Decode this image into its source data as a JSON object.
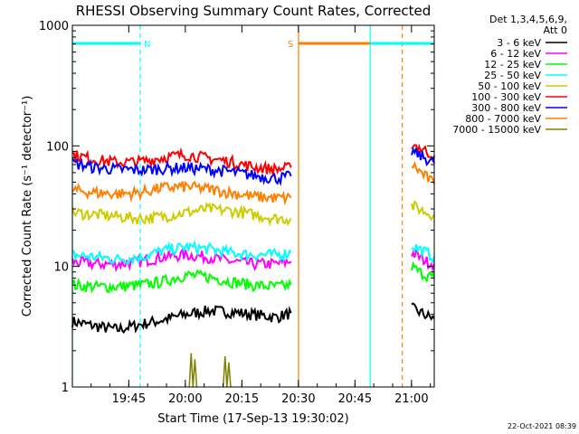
{
  "chart_data": {
    "type": "line",
    "title": "RHESSI Observing Summary Count Rates, Corrected",
    "xlabel": "Start Time (17-Sep-13 19:30:02)",
    "ylabel": "Corrected Count Rate (s⁻¹ detector⁻¹)",
    "y_scale": "log",
    "ylim": [
      1,
      1000
    ],
    "xlim_minutes": [
      0,
      96
    ],
    "x_tick_labels": [
      "19:45",
      "20:00",
      "20:15",
      "20:30",
      "20:45",
      "21:00"
    ],
    "y_tick_labels": [
      "1",
      "10",
      "100",
      "1000"
    ],
    "legend_header": [
      "Det 1,3,4,5,6,9,",
      "Att 0"
    ],
    "legend_position": "right",
    "timestamp": "22-Oct-2021 08:39",
    "flags": [
      {
        "label": "N",
        "color": "#00ffff",
        "start_min": 0,
        "end_min": 18
      },
      {
        "label": "S",
        "color": "#ff8000",
        "start_min": 60,
        "end_min": 87.5
      },
      {
        "label": "",
        "color": "#00ffff",
        "start_min": 79,
        "end_min": 96
      }
    ],
    "vertical_lines": [
      {
        "at_min": 0,
        "color": "#00ffff",
        "style": "solid"
      },
      {
        "at_min": 18,
        "color": "#00ffff",
        "style": "dashed"
      },
      {
        "at_min": 60,
        "color": "#ff8000",
        "style": "solid"
      },
      {
        "at_min": 79,
        "color": "#00ffff",
        "style": "solid"
      },
      {
        "at_min": 87.5,
        "color": "#ff8000",
        "style": "dashed"
      },
      {
        "at_min": 96,
        "color": "#00ffff",
        "style": "dashed"
      }
    ],
    "series": [
      {
        "name": "3 - 6 keV",
        "color": "#000000",
        "segments": [
          {
            "x": [
              0,
              6,
              12,
              18,
              24,
              30,
              36,
              42,
              48,
              54,
              58
            ],
            "y": [
              3.5,
              3.2,
              3.0,
              3.3,
              3.6,
              4.0,
              4.3,
              4.2,
              4.0,
              3.8,
              4.1
            ]
          },
          {
            "x": [
              90,
              92,
              94,
              96
            ],
            "y": [
              4.5,
              4.2,
              3.9,
              3.7
            ]
          }
        ]
      },
      {
        "name": "6 - 12 keV",
        "color": "#ff00ff",
        "segments": [
          {
            "x": [
              0,
              6,
              12,
              18,
              24,
              30,
              36,
              42,
              48,
              54,
              58
            ],
            "y": [
              11,
              10.5,
              10.5,
              11,
              12,
              12.5,
              12,
              11,
              10.5,
              10.5,
              11
            ]
          },
          {
            "x": [
              90,
              92,
              94,
              96
            ],
            "y": [
              13,
              12,
              11,
              10.5
            ]
          }
        ]
      },
      {
        "name": "12 - 25 keV",
        "color": "#00ff00",
        "segments": [
          {
            "x": [
              0,
              6,
              12,
              18,
              24,
              30,
              36,
              42,
              48,
              54,
              58
            ],
            "y": [
              7,
              6.8,
              6.8,
              7,
              7.5,
              8.5,
              8.2,
              7.5,
              7,
              6.8,
              7
            ]
          },
          {
            "x": [
              90,
              92,
              94,
              96
            ],
            "y": [
              10,
              9,
              8.5,
              8
            ]
          }
        ]
      },
      {
        "name": "25 - 50 keV",
        "color": "#00ffff",
        "segments": [
          {
            "x": [
              0,
              6,
              12,
              18,
              24,
              30,
              36,
              42,
              48,
              54,
              58
            ],
            "y": [
              12.5,
              12,
              11.5,
              12,
              13.5,
              14.5,
              14,
              13,
              12.5,
              12.5,
              13
            ]
          },
          {
            "x": [
              90,
              92,
              94,
              96
            ],
            "y": [
              15,
              14,
              13,
              12
            ]
          }
        ]
      },
      {
        "name": "50 - 100 keV",
        "color": "#cccc00",
        "segments": [
          {
            "x": [
              0,
              6,
              12,
              18,
              24,
              30,
              36,
              42,
              48,
              54,
              58
            ],
            "y": [
              28,
              27,
              26,
              25,
              26,
              28,
              30,
              29,
              27,
              25,
              25
            ]
          },
          {
            "x": [
              90,
              92,
              94,
              96
            ],
            "y": [
              32,
              30,
              28,
              27
            ]
          }
        ]
      },
      {
        "name": "100 - 300 keV",
        "color": "#ff0000",
        "segments": [
          {
            "x": [
              0,
              6,
              12,
              18,
              24,
              30,
              36,
              42,
              48,
              54,
              58
            ],
            "y": [
              85,
              77,
              73,
              74,
              80,
              85,
              79,
              74,
              67,
              64,
              66
            ]
          },
          {
            "x": [
              90,
              92,
              94,
              96
            ],
            "y": [
              105,
              97,
              90,
              83
            ]
          }
        ]
      },
      {
        "name": "300 - 800 keV",
        "color": "#0000ff",
        "segments": [
          {
            "x": [
              0,
              6,
              12,
              18,
              24,
              30,
              36,
              42,
              48,
              54,
              58
            ],
            "y": [
              72,
              66,
              64,
              63,
              65,
              66,
              64,
              61,
              57,
              54,
              56
            ]
          },
          {
            "x": [
              90,
              92,
              94,
              96
            ],
            "y": [
              90,
              84,
              78,
              72
            ]
          }
        ]
      },
      {
        "name": "800 - 7000 keV",
        "color": "#ff8000",
        "segments": [
          {
            "x": [
              0,
              6,
              12,
              18,
              24,
              30,
              36,
              42,
              48,
              54,
              58
            ],
            "y": [
              43,
              41,
              40,
              41,
              45,
              46,
              44,
              41,
              38,
              37,
              37
            ]
          },
          {
            "x": [
              90,
              92,
              94,
              96
            ],
            "y": [
              70,
              62,
              55,
              48
            ]
          }
        ]
      },
      {
        "name": "7000 - 15000 keV",
        "color": "#808000",
        "segments": [
          {
            "x": [
              31,
              31.5,
              32,
              32.5,
              33
            ],
            "y": [
              1,
              1.9,
              1,
              1.7,
              1
            ]
          },
          {
            "x": [
              40,
              40.5,
              41,
              41.5,
              42
            ],
            "y": [
              1,
              1.8,
              1,
              1.6,
              1
            ]
          }
        ]
      }
    ]
  }
}
